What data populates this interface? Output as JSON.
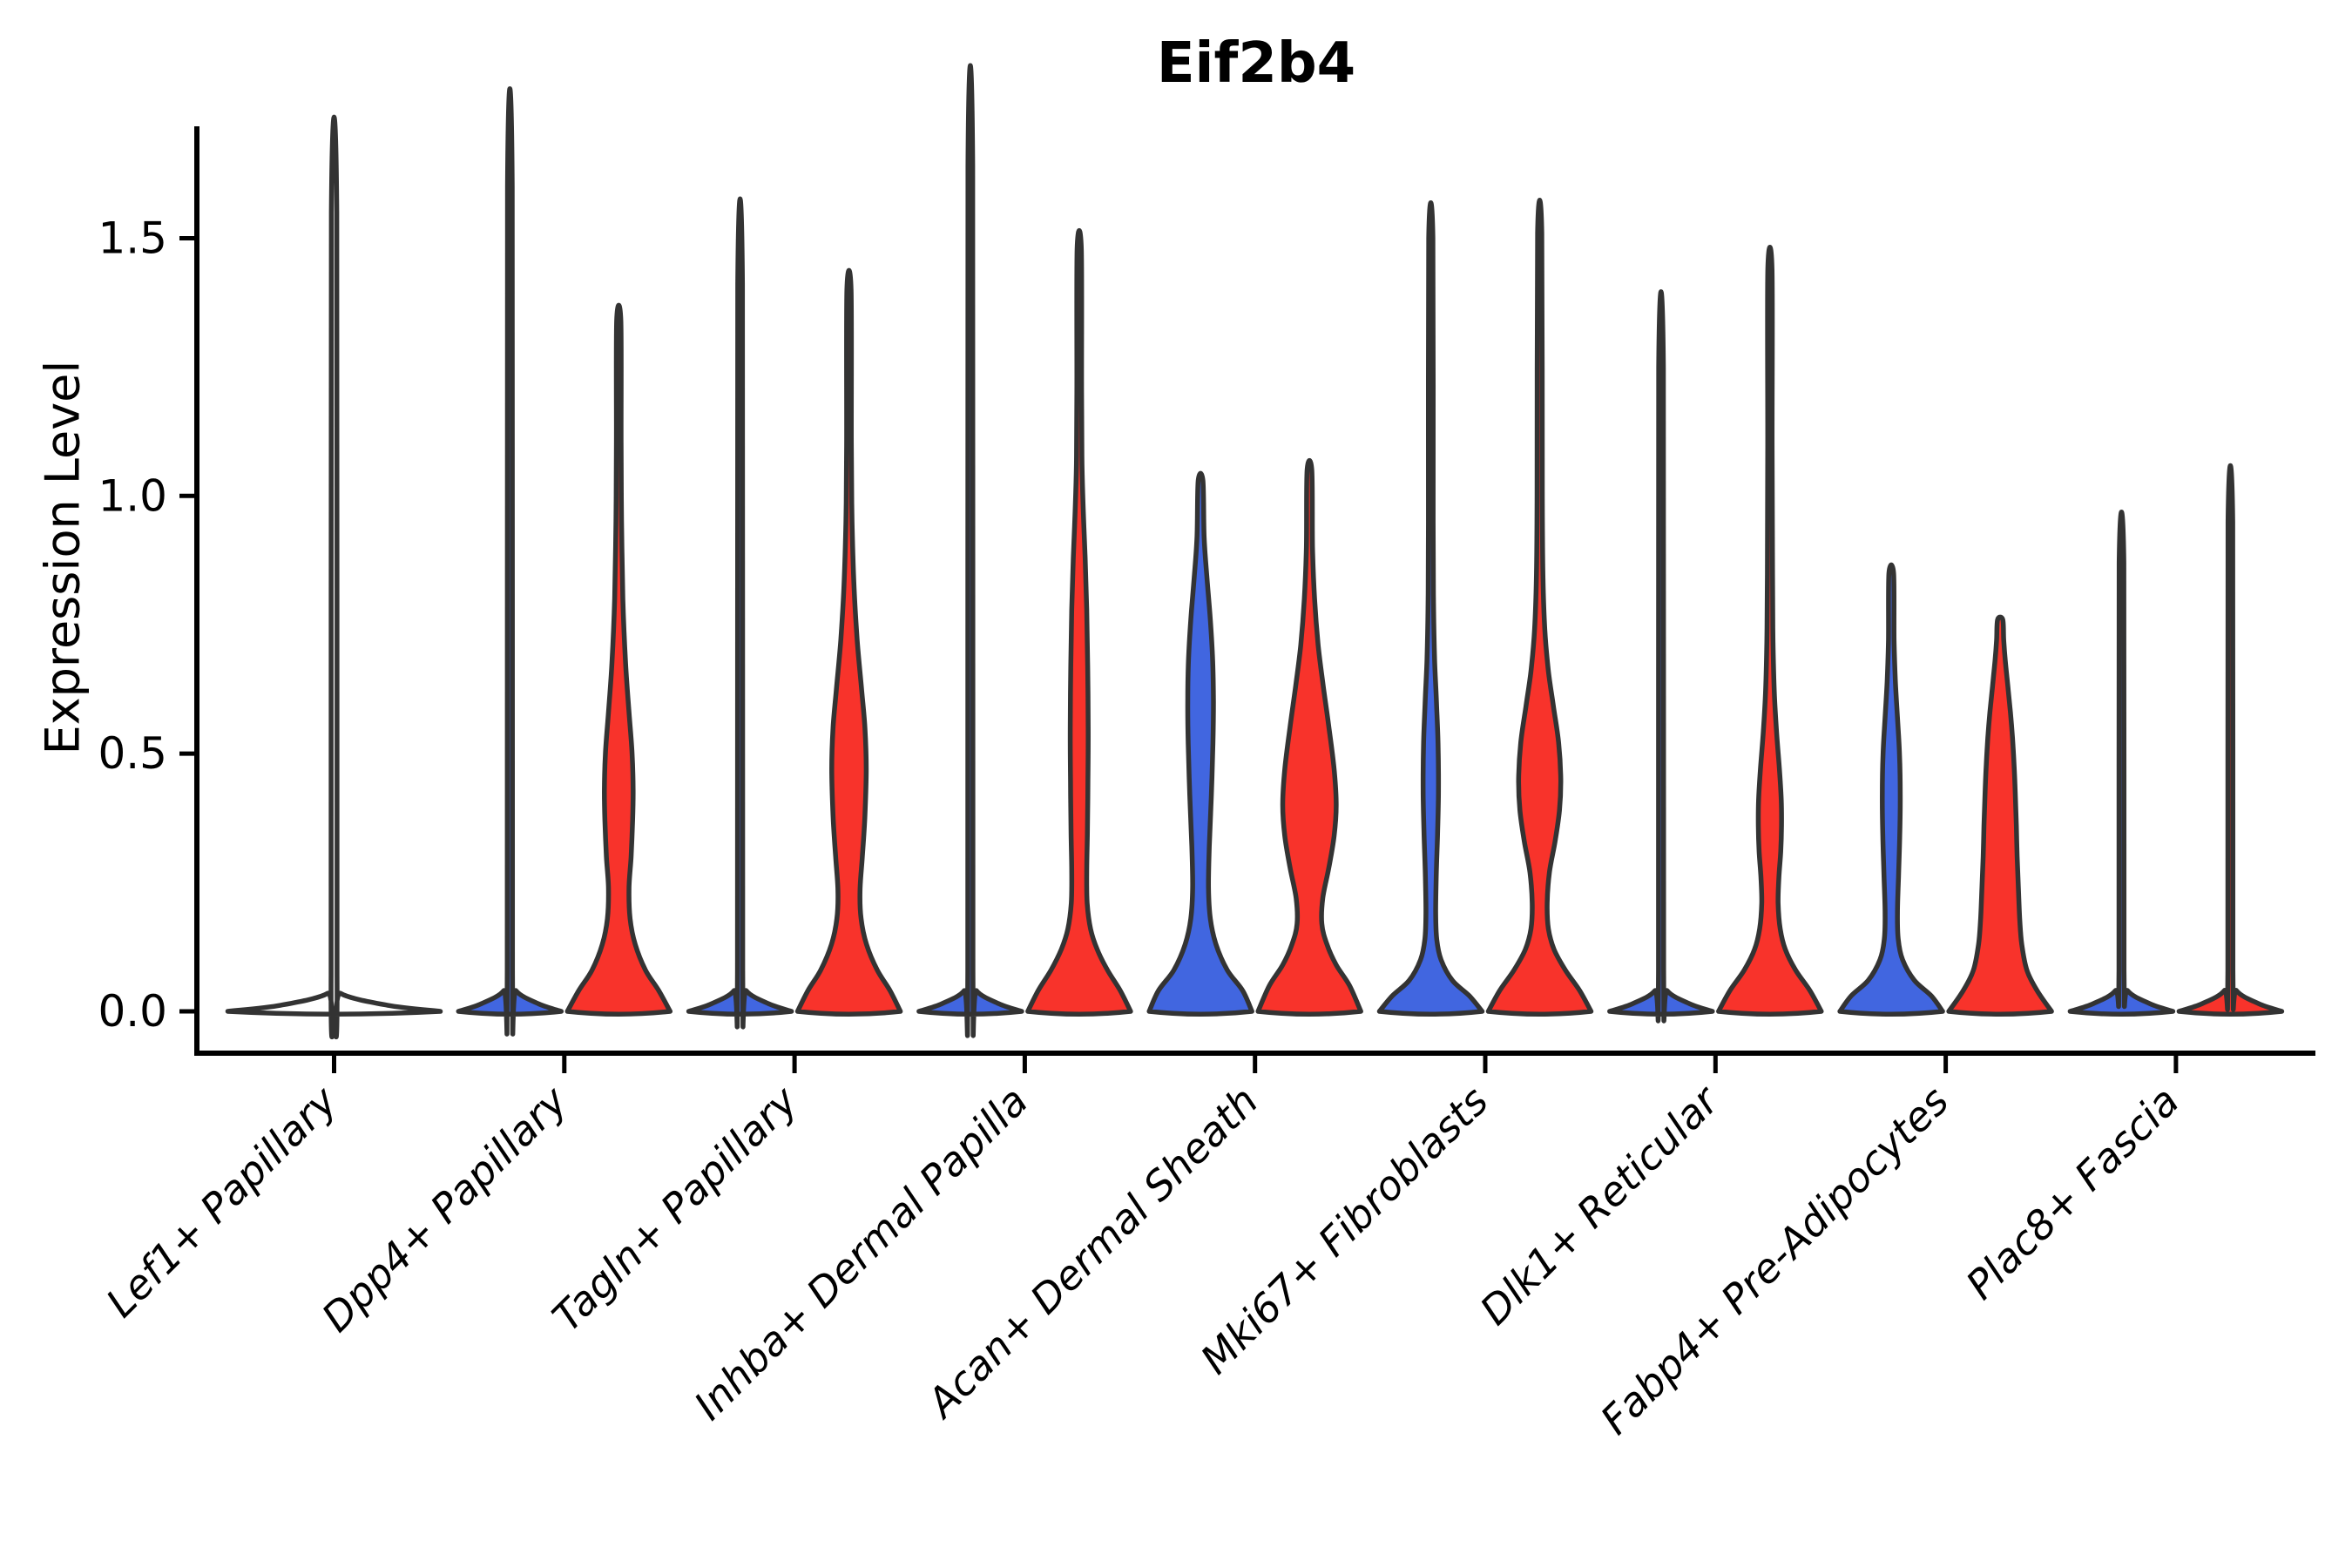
{
  "title": "Eif2b4",
  "y_axis": {
    "label": "Expression Level",
    "ticks": [
      "0.0",
      "0.5",
      "1.0",
      "1.5"
    ],
    "tick_values": [
      0.0,
      0.5,
      1.0,
      1.5
    ]
  },
  "colors": {
    "red": "#F8332B",
    "blue": "#4166E0",
    "none": "#FFFFFF",
    "outline": "#333333",
    "axis": "#000000",
    "text": "#000000"
  },
  "chart_data": {
    "type": "violin",
    "title": "Eif2b4",
    "xlabel": "",
    "ylabel": "Expression Level",
    "ylim": [
      -0.08,
      1.71
    ],
    "yticks": [
      0.0,
      0.5,
      1.0,
      1.5
    ],
    "grid": false,
    "legend": "none",
    "categories": [
      "Lef1+ Papillary",
      "Dpp4+ Papillary",
      "Tagln+ Papillary",
      "Inhba+ Dermal Papilla",
      "Acan+ Dermal Sheath",
      "Mki67+ Fibroblasts",
      "Dlk1+ Reticular",
      "Fabp4+ Pre-Adipocytes",
      "Plac8+ Fascia"
    ],
    "groups": [
      {
        "label": "Lef1+ Papillary",
        "violins": [
          {
            "side": "center",
            "color": "none",
            "max_expression": 1.55,
            "mass_at_zero": true,
            "profile": [
              [
                0,
                1
              ],
              [
                0.012,
                0.5
              ],
              [
                0.035,
                0.06
              ],
              [
                0.07,
                0.028
              ],
              [
                1.55,
                0.025
              ]
            ]
          }
        ]
      },
      {
        "label": "Dpp4+ Papillary",
        "violins": [
          {
            "side": "left",
            "color": "blue",
            "max_expression": 1.6,
            "mass_at_zero": true,
            "profile": [
              [
                0,
                1
              ],
              [
                0.015,
                0.55
              ],
              [
                0.04,
                0.12
              ],
              [
                0.08,
                0.05
              ],
              [
                1.6,
                0.045
              ]
            ]
          },
          {
            "side": "right",
            "color": "red",
            "max_expression": 1.34,
            "mass_at_zero": false,
            "profile": [
              [
                0,
                1
              ],
              [
                0.04,
                0.78
              ],
              [
                0.08,
                0.52
              ],
              [
                0.13,
                0.32
              ],
              [
                0.18,
                0.22
              ],
              [
                0.24,
                0.2
              ],
              [
                0.3,
                0.24
              ],
              [
                0.37,
                0.27
              ],
              [
                0.43,
                0.28
              ],
              [
                0.5,
                0.26
              ],
              [
                0.58,
                0.2
              ],
              [
                0.68,
                0.13
              ],
              [
                0.8,
                0.08
              ],
              [
                0.95,
                0.055
              ],
              [
                1.1,
                0.045
              ],
              [
                1.34,
                0.04
              ]
            ]
          }
        ]
      },
      {
        "label": "Tagln+ Papillary",
        "violins": [
          {
            "side": "left",
            "color": "blue",
            "max_expression": 1.41,
            "mass_at_zero": true,
            "profile": [
              [
                0,
                1
              ],
              [
                0.015,
                0.55
              ],
              [
                0.04,
                0.12
              ],
              [
                0.08,
                0.05
              ],
              [
                1.41,
                0.045
              ]
            ]
          },
          {
            "side": "right",
            "color": "red",
            "max_expression": 1.4,
            "mass_at_zero": false,
            "profile": [
              [
                0,
                1
              ],
              [
                0.04,
                0.8
              ],
              [
                0.08,
                0.55
              ],
              [
                0.13,
                0.34
              ],
              [
                0.18,
                0.235
              ],
              [
                0.235,
                0.215
              ],
              [
                0.3,
                0.26
              ],
              [
                0.38,
                0.31
              ],
              [
                0.47,
                0.335
              ],
              [
                0.55,
                0.31
              ],
              [
                0.63,
                0.24
              ],
              [
                0.72,
                0.16
              ],
              [
                0.82,
                0.1
              ],
              [
                0.95,
                0.06
              ],
              [
                1.1,
                0.045
              ],
              [
                1.4,
                0.04
              ]
            ]
          }
        ]
      },
      {
        "label": "Inhba+ Dermal Papilla",
        "violins": [
          {
            "side": "left",
            "color": "blue",
            "max_expression": 1.64,
            "mass_at_zero": true,
            "profile": [
              [
                0,
                1
              ],
              [
                0.015,
                0.55
              ],
              [
                0.04,
                0.12
              ],
              [
                0.08,
                0.05
              ],
              [
                1.64,
                0.045
              ]
            ]
          },
          {
            "side": "right",
            "color": "red",
            "max_expression": 1.48,
            "mass_at_zero": false,
            "profile": [
              [
                0,
                1
              ],
              [
                0.04,
                0.8
              ],
              [
                0.08,
                0.55
              ],
              [
                0.12,
                0.35
              ],
              [
                0.16,
                0.22
              ],
              [
                0.21,
                0.155
              ],
              [
                0.27,
                0.145
              ],
              [
                0.35,
                0.16
              ],
              [
                0.45,
                0.17
              ],
              [
                0.55,
                0.175
              ],
              [
                0.67,
                0.165
              ],
              [
                0.78,
                0.145
              ],
              [
                0.88,
                0.115
              ],
              [
                0.97,
                0.08
              ],
              [
                1.06,
                0.055
              ],
              [
                1.2,
                0.045
              ],
              [
                1.48,
                0.04
              ]
            ]
          }
        ]
      },
      {
        "label": "Acan+ Dermal Sheath",
        "violins": [
          {
            "side": "left",
            "color": "blue",
            "max_expression": 1.03,
            "mass_at_zero": false,
            "profile": [
              [
                0,
                1
              ],
              [
                0.04,
                0.82
              ],
              [
                0.08,
                0.52
              ],
              [
                0.13,
                0.3
              ],
              [
                0.18,
                0.19
              ],
              [
                0.24,
                0.155
              ],
              [
                0.32,
                0.17
              ],
              [
                0.42,
                0.21
              ],
              [
                0.52,
                0.24
              ],
              [
                0.6,
                0.25
              ],
              [
                0.68,
                0.235
              ],
              [
                0.76,
                0.19
              ],
              [
                0.84,
                0.125
              ],
              [
                0.92,
                0.07
              ],
              [
                1.03,
                0.045
              ]
            ]
          },
          {
            "side": "right",
            "color": "red",
            "max_expression": 1.05,
            "mass_at_zero": false,
            "profile": [
              [
                0,
                1
              ],
              [
                0.05,
                0.78
              ],
              [
                0.09,
                0.52
              ],
              [
                0.13,
                0.34
              ],
              [
                0.17,
                0.24
              ],
              [
                0.22,
                0.26
              ],
              [
                0.28,
                0.38
              ],
              [
                0.34,
                0.48
              ],
              [
                0.4,
                0.52
              ],
              [
                0.47,
                0.48
              ],
              [
                0.55,
                0.38
              ],
              [
                0.63,
                0.27
              ],
              [
                0.71,
                0.17
              ],
              [
                0.8,
                0.1
              ],
              [
                0.9,
                0.06
              ],
              [
                1.05,
                0.045
              ]
            ]
          }
        ]
      },
      {
        "label": "Mki67+ Fibroblasts",
        "violins": [
          {
            "side": "left",
            "color": "blue",
            "max_expression": 1.5,
            "mass_at_zero": false,
            "profile": [
              [
                0,
                1
              ],
              [
                0.03,
                0.75
              ],
              [
                0.06,
                0.42
              ],
              [
                0.1,
                0.2
              ],
              [
                0.14,
                0.115
              ],
              [
                0.19,
                0.095
              ],
              [
                0.26,
                0.105
              ],
              [
                0.34,
                0.13
              ],
              [
                0.43,
                0.15
              ],
              [
                0.52,
                0.14
              ],
              [
                0.6,
                0.11
              ],
              [
                0.68,
                0.075
              ],
              [
                0.78,
                0.055
              ],
              [
                0.95,
                0.045
              ],
              [
                1.5,
                0.04
              ]
            ]
          },
          {
            "side": "right",
            "color": "red",
            "max_expression": 1.51,
            "mass_at_zero": false,
            "profile": [
              [
                0,
                1
              ],
              [
                0.04,
                0.78
              ],
              [
                0.08,
                0.5
              ],
              [
                0.12,
                0.28
              ],
              [
                0.16,
                0.17
              ],
              [
                0.21,
                0.145
              ],
              [
                0.27,
                0.19
              ],
              [
                0.33,
                0.3
              ],
              [
                0.39,
                0.385
              ],
              [
                0.45,
                0.41
              ],
              [
                0.52,
                0.37
              ],
              [
                0.59,
                0.27
              ],
              [
                0.66,
                0.17
              ],
              [
                0.74,
                0.1
              ],
              [
                0.84,
                0.065
              ],
              [
                1.0,
                0.05
              ],
              [
                1.51,
                0.04
              ]
            ]
          }
        ]
      },
      {
        "label": "Dlk1+ Reticular",
        "violins": [
          {
            "side": "left",
            "color": "blue",
            "max_expression": 1.25,
            "mass_at_zero": true,
            "profile": [
              [
                0,
                1
              ],
              [
                0.015,
                0.55
              ],
              [
                0.04,
                0.12
              ],
              [
                0.08,
                0.05
              ],
              [
                1.25,
                0.045
              ]
            ]
          },
          {
            "side": "right",
            "color": "red",
            "max_expression": 1.44,
            "mass_at_zero": false,
            "profile": [
              [
                0,
                1
              ],
              [
                0.04,
                0.78
              ],
              [
                0.08,
                0.5
              ],
              [
                0.12,
                0.3
              ],
              [
                0.16,
                0.2
              ],
              [
                0.21,
                0.16
              ],
              [
                0.26,
                0.175
              ],
              [
                0.31,
                0.21
              ],
              [
                0.36,
                0.225
              ],
              [
                0.41,
                0.22
              ],
              [
                0.47,
                0.185
              ],
              [
                0.54,
                0.13
              ],
              [
                0.62,
                0.085
              ],
              [
                0.72,
                0.06
              ],
              [
                0.85,
                0.05
              ],
              [
                1.1,
                0.042
              ],
              [
                1.44,
                0.04
              ]
            ]
          }
        ]
      },
      {
        "label": "Fabp4+ Pre-Adipocytes",
        "violins": [
          {
            "side": "left",
            "color": "blue",
            "max_expression": 0.85,
            "mass_at_zero": false,
            "profile": [
              [
                0,
                1
              ],
              [
                0.03,
                0.78
              ],
              [
                0.06,
                0.45
              ],
              [
                0.1,
                0.22
              ],
              [
                0.14,
                0.135
              ],
              [
                0.19,
                0.12
              ],
              [
                0.26,
                0.14
              ],
              [
                0.34,
                0.165
              ],
              [
                0.42,
                0.175
              ],
              [
                0.5,
                0.16
              ],
              [
                0.57,
                0.12
              ],
              [
                0.64,
                0.08
              ],
              [
                0.72,
                0.055
              ],
              [
                0.85,
                0.045
              ]
            ]
          },
          {
            "side": "right",
            "color": "red",
            "max_expression": 0.76,
            "mass_at_zero": false,
            "profile": [
              [
                0,
                1
              ],
              [
                0.04,
                0.72
              ],
              [
                0.08,
                0.52
              ],
              [
                0.13,
                0.42
              ],
              [
                0.18,
                0.38
              ],
              [
                0.24,
                0.355
              ],
              [
                0.3,
                0.33
              ],
              [
                0.36,
                0.315
              ],
              [
                0.42,
                0.295
              ],
              [
                0.48,
                0.27
              ],
              [
                0.53,
                0.24
              ],
              [
                0.58,
                0.2
              ],
              [
                0.63,
                0.15
              ],
              [
                0.68,
                0.1
              ],
              [
                0.72,
                0.07
              ],
              [
                0.76,
                0.05
              ]
            ]
          }
        ]
      },
      {
        "label": "Plac8+ Fascia",
        "violins": [
          {
            "side": "left",
            "color": "blue",
            "max_expression": 0.87,
            "mass_at_zero": true,
            "profile": [
              [
                0,
                1
              ],
              [
                0.015,
                0.55
              ],
              [
                0.04,
                0.12
              ],
              [
                0.08,
                0.05
              ],
              [
                0.87,
                0.045
              ]
            ]
          },
          {
            "side": "right",
            "color": "red",
            "max_expression": 0.95,
            "mass_at_zero": true,
            "profile": [
              [
                0,
                1
              ],
              [
                0.015,
                0.55
              ],
              [
                0.04,
                0.12
              ],
              [
                0.08,
                0.05
              ],
              [
                0.95,
                0.045
              ]
            ]
          }
        ]
      }
    ]
  }
}
